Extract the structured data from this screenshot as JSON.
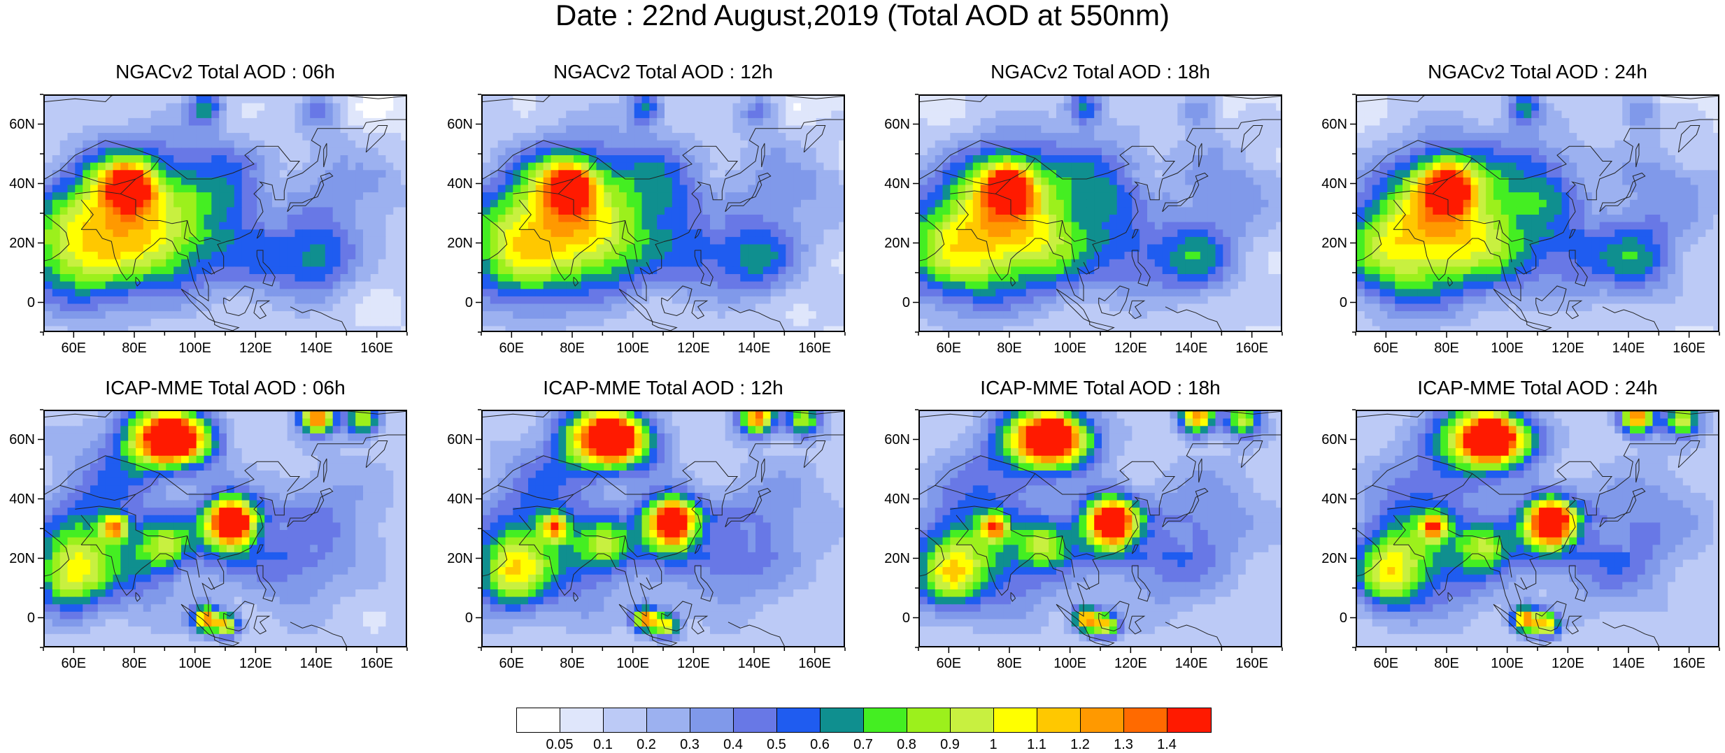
{
  "page": {
    "title": "Date : 22nd August,2019 (Total AOD at 550nm)"
  },
  "panels": [
    {
      "title": "NGACv2 Total AOD : 06h",
      "model": "NGACv2",
      "hour": "06h"
    },
    {
      "title": "NGACv2 Total AOD : 12h",
      "model": "NGACv2",
      "hour": "12h"
    },
    {
      "title": "NGACv2 Total AOD : 18h",
      "model": "NGACv2",
      "hour": "18h"
    },
    {
      "title": "NGACv2 Total AOD : 24h",
      "model": "NGACv2",
      "hour": "24h"
    },
    {
      "title": "ICAP-MME Total AOD : 06h",
      "model": "ICAP-MME",
      "hour": "06h"
    },
    {
      "title": "ICAP-MME Total AOD : 12h",
      "model": "ICAP-MME",
      "hour": "12h"
    },
    {
      "title": "ICAP-MME Total AOD : 18h",
      "model": "ICAP-MME",
      "hour": "18h"
    },
    {
      "title": "ICAP-MME Total AOD : 24h",
      "model": "ICAP-MME",
      "hour": "24h"
    }
  ],
  "axes": {
    "lat_ticks": [
      "60N",
      "40N",
      "20N",
      "0"
    ],
    "lon_ticks": [
      "60E",
      "80E",
      "100E",
      "120E",
      "140E",
      "160E"
    ],
    "lat_values": [
      60,
      40,
      20,
      0
    ],
    "lon_values": [
      60,
      80,
      100,
      120,
      140,
      160
    ],
    "lat_range": [
      -10,
      70
    ],
    "lon_range": [
      50,
      170
    ]
  },
  "colorbar": {
    "labels": [
      "0.05",
      "0.1",
      "0.2",
      "0.3",
      "0.4",
      "0.5",
      "0.6",
      "0.7",
      "0.8",
      "0.9",
      "1",
      "1.1",
      "1.2",
      "1.3",
      "1.4"
    ],
    "colors": [
      "#ffffff",
      "#dfe6fb",
      "#bccaf6",
      "#9cb1f0",
      "#8099ea",
      "#6878e6",
      "#1f5cf0",
      "#0f8f8f",
      "#44ee22",
      "#9cf01c",
      "#c8f040",
      "#ffff00",
      "#ffc800",
      "#ff9900",
      "#ff6a00",
      "#ff1a00"
    ]
  }
}
